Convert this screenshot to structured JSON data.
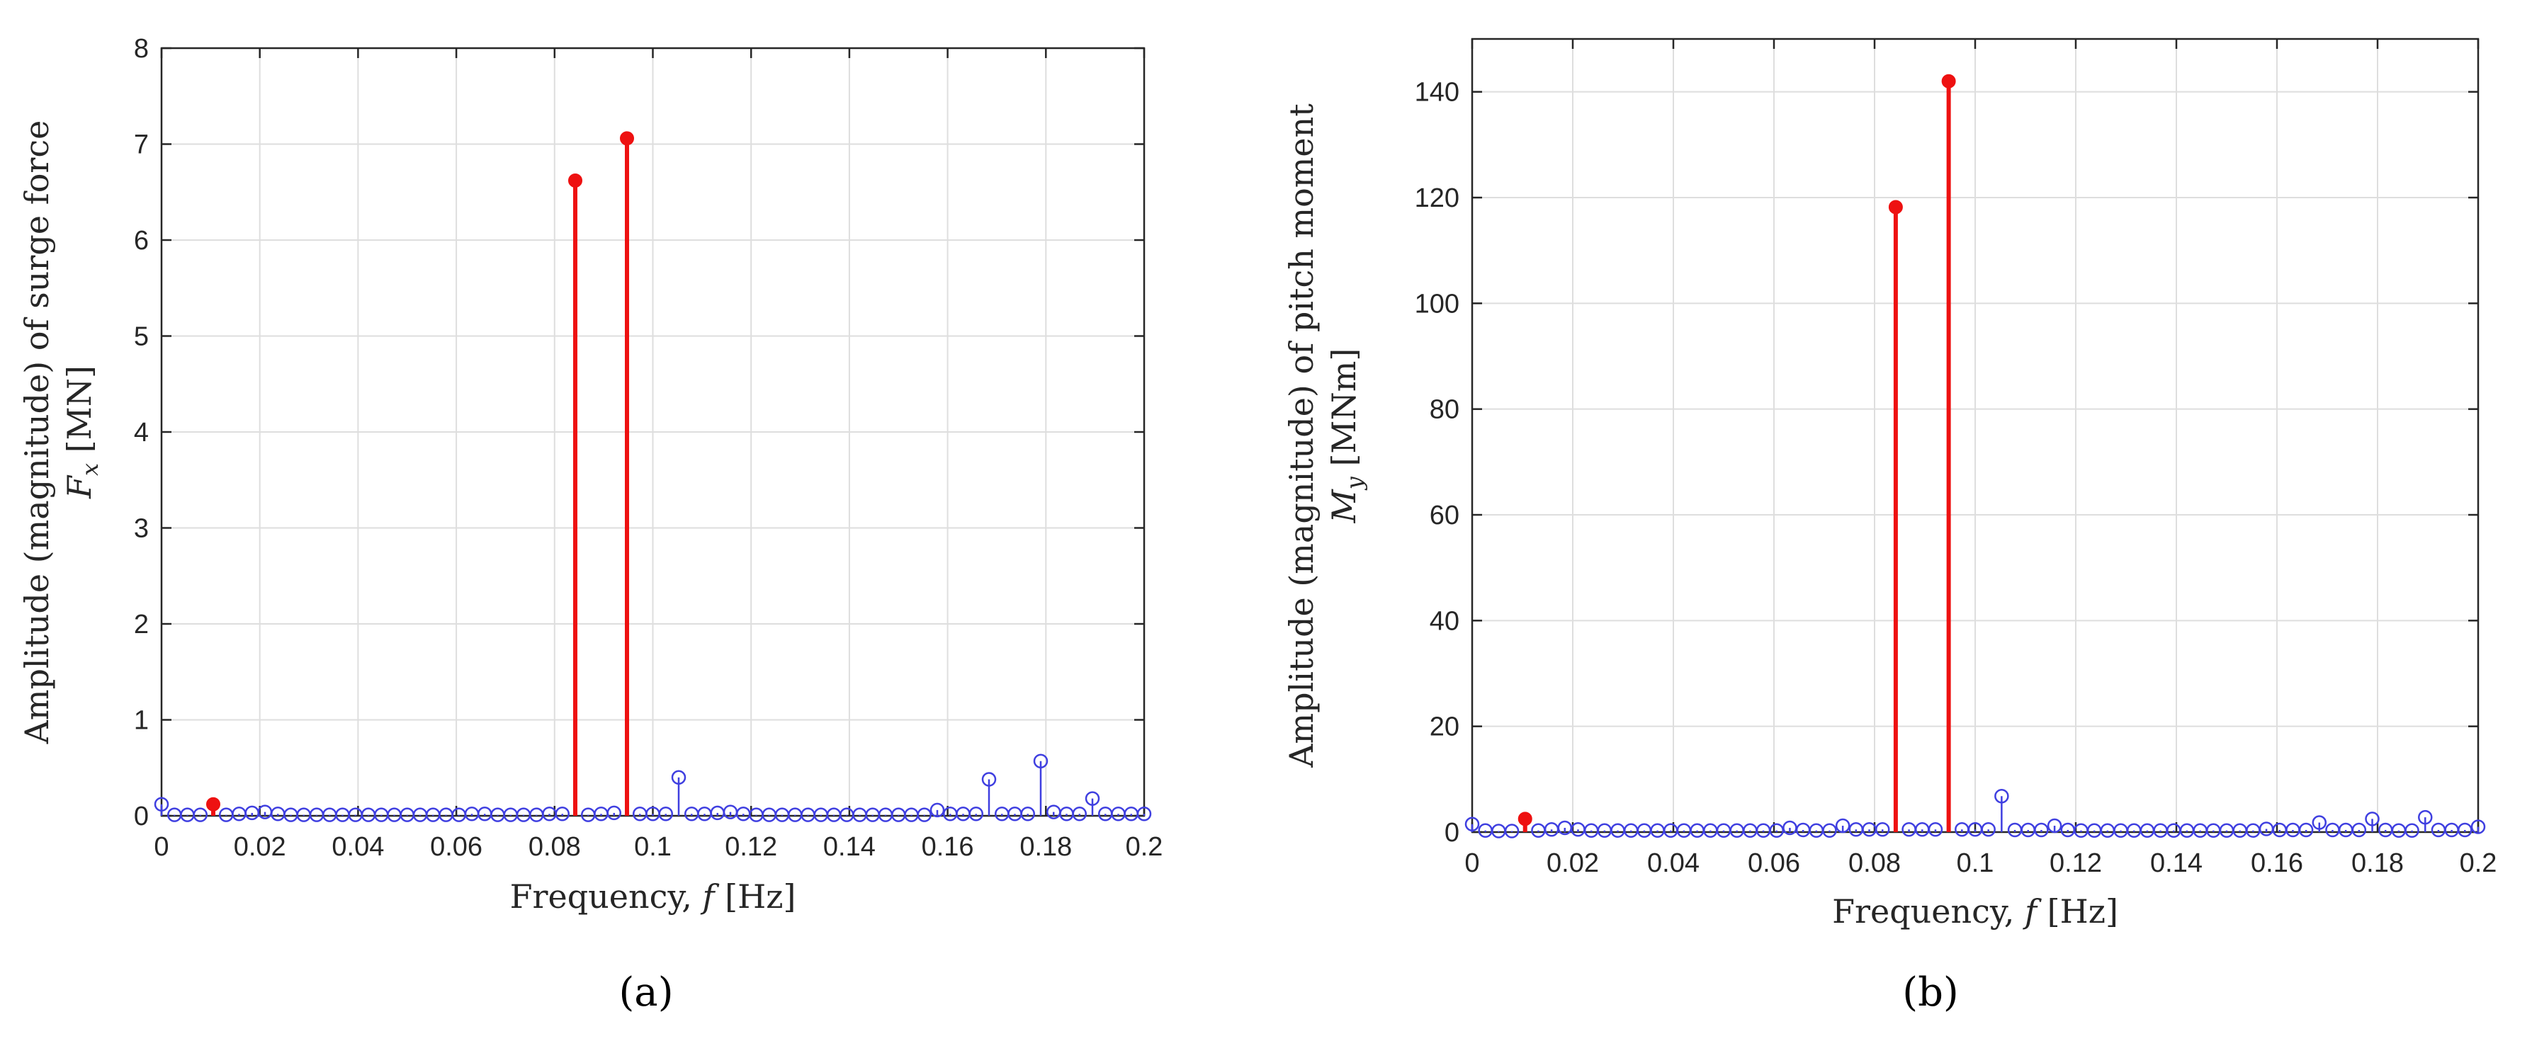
{
  "chart_data": [
    {
      "type": "stem",
      "xlabel_prefix": "Frequency, ",
      "xlabel_var": "f",
      "xlabel_unit": " [Hz]",
      "ylabel_line1": "Amplitude (magnitude) of surge force",
      "ylabel_var": "F",
      "ylabel_sub": "x",
      "ylabel_unit": " [MN]",
      "xlim": [
        0,
        0.2
      ],
      "ylim": [
        0,
        8
      ],
      "xticks": [
        0,
        0.02,
        0.04,
        0.06,
        0.08,
        0.1,
        0.12,
        0.14,
        0.16,
        0.18,
        0.2
      ],
      "xtick_labels": [
        "0",
        "0.02",
        "0.04",
        "0.06",
        "0.08",
        "0.1",
        "0.12",
        "0.14",
        "0.16",
        "0.18",
        "0.2"
      ],
      "yticks": [
        0,
        1,
        2,
        3,
        4,
        5,
        6,
        7,
        8
      ],
      "ytick_labels": [
        "0",
        "1",
        "2",
        "3",
        "4",
        "5",
        "6",
        "7",
        "8"
      ],
      "grid": true,
      "caption": "(a)",
      "series": [
        {
          "color": "#3f3fe0",
          "marker": "open-circle",
          "x": [
            0,
            0.002632,
            0.005263,
            0.007895,
            0.013158,
            0.015789,
            0.018421,
            0.021053,
            0.023684,
            0.026316,
            0.028947,
            0.031579,
            0.034211,
            0.036842,
            0.039474,
            0.042105,
            0.044737,
            0.047368,
            0.05,
            0.052632,
            0.055263,
            0.057895,
            0.060526,
            0.063158,
            0.065789,
            0.068421,
            0.071053,
            0.073684,
            0.076316,
            0.078947,
            0.081579,
            0.086842,
            0.089474,
            0.092105,
            0.097368,
            0.1,
            0.102632,
            0.105263,
            0.107895,
            0.110526,
            0.113158,
            0.115789,
            0.118421,
            0.121053,
            0.123684,
            0.126316,
            0.128947,
            0.131579,
            0.134211,
            0.136842,
            0.139474,
            0.142105,
            0.144737,
            0.147368,
            0.15,
            0.152632,
            0.155263,
            0.157895,
            0.160526,
            0.163158,
            0.165789,
            0.168421,
            0.171053,
            0.173684,
            0.176316,
            0.178947,
            0.181579,
            0.184211,
            0.186842,
            0.189474,
            0.192105,
            0.194737,
            0.197368,
            0.2
          ],
          "y": [
            0.12,
            0.01,
            0.01,
            0.01,
            0.01,
            0.02,
            0.03,
            0.04,
            0.02,
            0.01,
            0.01,
            0.01,
            0.01,
            0.01,
            0.01,
            0.01,
            0.01,
            0.01,
            0.01,
            0.01,
            0.01,
            0.01,
            0.01,
            0.02,
            0.02,
            0.01,
            0.01,
            0.01,
            0.01,
            0.02,
            0.02,
            0.01,
            0.02,
            0.03,
            0.02,
            0.02,
            0.02,
            0.4,
            0.02,
            0.02,
            0.03,
            0.04,
            0.02,
            0.01,
            0.01,
            0.01,
            0.01,
            0.01,
            0.01,
            0.01,
            0.01,
            0.01,
            0.01,
            0.01,
            0.01,
            0.01,
            0.01,
            0.06,
            0.02,
            0.02,
            0.02,
            0.38,
            0.02,
            0.02,
            0.02,
            0.57,
            0.04,
            0.02,
            0.02,
            0.18,
            0.02,
            0.02,
            0.02,
            0.02
          ]
        },
        {
          "color": "#ee1111",
          "marker": "filled-circle",
          "x": [
            0.010526,
            0.084211,
            0.094737
          ],
          "y": [
            0.12,
            6.62,
            7.06
          ]
        }
      ]
    },
    {
      "type": "stem",
      "xlabel_prefix": "Frequency, ",
      "xlabel_var": "f",
      "xlabel_unit": " [Hz]",
      "ylabel_line1": "Amplitude (magnitude) of pitch moment",
      "ylabel_var": "M",
      "ylabel_sub": "y",
      "ylabel_unit": " [MNm]",
      "xlim": [
        0,
        0.2
      ],
      "ylim": [
        0,
        150
      ],
      "xticks": [
        0,
        0.02,
        0.04,
        0.06,
        0.08,
        0.1,
        0.12,
        0.14,
        0.16,
        0.18,
        0.2
      ],
      "xtick_labels": [
        "0",
        "0.02",
        "0.04",
        "0.06",
        "0.08",
        "0.1",
        "0.12",
        "0.14",
        "0.16",
        "0.18",
        "0.2"
      ],
      "yticks": [
        0,
        20,
        40,
        60,
        80,
        100,
        120,
        140
      ],
      "ytick_labels": [
        "0",
        "20",
        "40",
        "60",
        "80",
        "100",
        "120",
        "140"
      ],
      "grid": true,
      "caption": "(b)",
      "series": [
        {
          "color": "#3f3fe0",
          "marker": "open-circle",
          "x": [
            0,
            0.002632,
            0.005263,
            0.007895,
            0.013158,
            0.015789,
            0.018421,
            0.021053,
            0.023684,
            0.026316,
            0.028947,
            0.031579,
            0.034211,
            0.036842,
            0.039474,
            0.042105,
            0.044737,
            0.047368,
            0.05,
            0.052632,
            0.055263,
            0.057895,
            0.060526,
            0.063158,
            0.065789,
            0.068421,
            0.071053,
            0.073684,
            0.076316,
            0.078947,
            0.081579,
            0.086842,
            0.089474,
            0.092105,
            0.097368,
            0.1,
            0.102632,
            0.105263,
            0.107895,
            0.110526,
            0.113158,
            0.115789,
            0.118421,
            0.121053,
            0.123684,
            0.126316,
            0.128947,
            0.131579,
            0.134211,
            0.136842,
            0.139474,
            0.142105,
            0.144737,
            0.147368,
            0.15,
            0.152632,
            0.155263,
            0.157895,
            0.160526,
            0.163158,
            0.165789,
            0.168421,
            0.171053,
            0.173684,
            0.176316,
            0.178947,
            0.181579,
            0.184211,
            0.186842,
            0.189474,
            0.192105,
            0.194737,
            0.197368,
            0.2
          ],
          "y": [
            1.5,
            0.3,
            0.2,
            0.2,
            0.3,
            0.5,
            0.8,
            0.5,
            0.3,
            0.3,
            0.3,
            0.3,
            0.3,
            0.3,
            0.3,
            0.3,
            0.3,
            0.3,
            0.3,
            0.3,
            0.3,
            0.3,
            0.3,
            0.8,
            0.4,
            0.3,
            0.3,
            1.2,
            0.5,
            0.5,
            0.5,
            0.5,
            0.5,
            0.5,
            0.5,
            0.5,
            0.5,
            6.8,
            0.4,
            0.4,
            0.4,
            1.2,
            0.4,
            0.3,
            0.3,
            0.3,
            0.3,
            0.3,
            0.3,
            0.3,
            0.3,
            0.3,
            0.3,
            0.3,
            0.3,
            0.3,
            0.3,
            0.6,
            0.4,
            0.4,
            0.4,
            1.8,
            0.4,
            0.4,
            0.4,
            2.5,
            0.4,
            0.3,
            0.3,
            2.8,
            0.4,
            0.4,
            0.4,
            1.0
          ]
        },
        {
          "color": "#ee1111",
          "marker": "filled-circle",
          "x": [
            0.010526,
            0.084211,
            0.094737
          ],
          "y": [
            2.5,
            118.2,
            142.0
          ]
        }
      ]
    }
  ]
}
